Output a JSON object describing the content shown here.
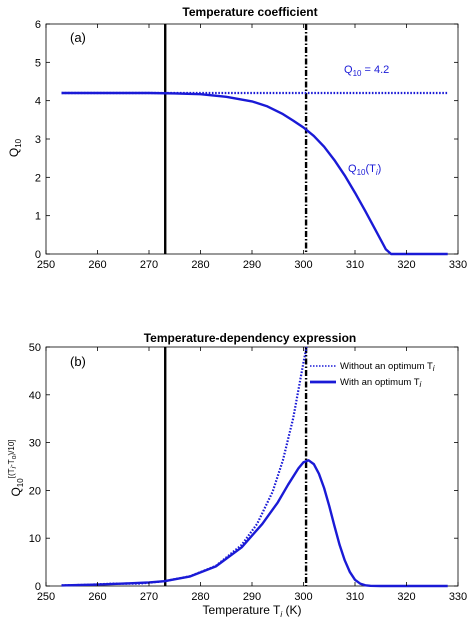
{
  "chart_data": [
    {
      "type": "line",
      "panel_label": "(a)",
      "title": "Temperature coefficient",
      "ylabel": {
        "base": "Q",
        "sub": "10"
      },
      "xlim": [
        250,
        330
      ],
      "ylim": [
        0,
        6
      ],
      "xticks": [
        250,
        260,
        270,
        280,
        290,
        300,
        310,
        320,
        330
      ],
      "yticks": [
        0,
        1,
        2,
        3,
        4,
        5,
        6
      ],
      "vlines": [
        {
          "x": 273.15,
          "style": "solid"
        },
        {
          "x": 300.5,
          "style": "dashdot"
        }
      ],
      "series": [
        {
          "name_parts": {
            "base": "Q",
            "eq": " = 4.2",
            "sub": "10"
          },
          "style": "dotted",
          "x": [
            253,
            328
          ],
          "y": [
            4.2,
            4.2
          ]
        },
        {
          "name_parts": {
            "base": "Q",
            "sub": "10",
            "paren_open": "(T",
            "italic": "i",
            "paren_close": ")"
          },
          "style": "solid",
          "x": [
            253,
            270,
            275,
            280,
            285,
            290,
            293,
            296,
            298,
            300,
            302,
            304,
            306,
            308,
            310,
            312,
            314,
            316,
            317,
            320,
            328
          ],
          "y": [
            4.2,
            4.2,
            4.19,
            4.17,
            4.1,
            3.98,
            3.85,
            3.65,
            3.48,
            3.3,
            3.08,
            2.8,
            2.45,
            2.05,
            1.6,
            1.12,
            0.62,
            0.12,
            0.0,
            0.0,
            0.0
          ]
        }
      ]
    },
    {
      "type": "line",
      "panel_label": "(b)",
      "title": "Temperature-dependency expression",
      "xlabel_parts": {
        "base": "Temperature T",
        "sub": "i",
        "unit": " (K)"
      },
      "ylabel_parts": {
        "base": "Q",
        "sub": "10",
        "sup": "[(T",
        "sup_i": "i",
        "sup_mid": "-T",
        "sup_o": "o",
        "sup_end": ")/10]"
      },
      "xlim": [
        250,
        330
      ],
      "ylim": [
        0,
        50
      ],
      "xticks": [
        250,
        260,
        270,
        280,
        290,
        300,
        310,
        320,
        330
      ],
      "yticks": [
        0,
        10,
        20,
        30,
        40,
        50
      ],
      "vlines": [
        {
          "x": 273.15,
          "style": "solid"
        },
        {
          "x": 300.5,
          "style": "dashdot"
        }
      ],
      "legend": {
        "placement": "top-right",
        "entries": [
          {
            "text": "Without an optimum T",
            "italic": "i",
            "style": "dotted"
          },
          {
            "text": "With an optimum T",
            "italic": "i",
            "style": "solid"
          }
        ]
      },
      "series": [
        {
          "legend_index": 0,
          "style": "dotted",
          "x": [
            253,
            258,
            263,
            268,
            273,
            278,
            283,
            288,
            291,
            294,
            296,
            298,
            300,
            300.6
          ],
          "y": [
            0.12,
            0.25,
            0.51,
            0.49,
            1.0,
            2.05,
            4.2,
            8.6,
            13.0,
            19.7,
            26.3,
            35.1,
            46.8,
            50.0
          ]
        },
        {
          "legend_index": 1,
          "style": "solid",
          "x": [
            253,
            260,
            265,
            270,
            273,
            278,
            283,
            288,
            292,
            295,
            297,
            299,
            300,
            301,
            302,
            303,
            304,
            305,
            306,
            307,
            308,
            309,
            310,
            311,
            312,
            313,
            315,
            320,
            328
          ],
          "y": [
            0.12,
            0.3,
            0.5,
            0.75,
            1.0,
            2.0,
            4.1,
            8.1,
            13.0,
            17.5,
            21.2,
            24.6,
            25.9,
            26.3,
            25.5,
            23.5,
            20.5,
            16.7,
            12.6,
            8.6,
            5.4,
            2.9,
            1.3,
            0.5,
            0.15,
            0.05,
            0.0,
            0.0,
            0.0
          ]
        }
      ]
    }
  ]
}
